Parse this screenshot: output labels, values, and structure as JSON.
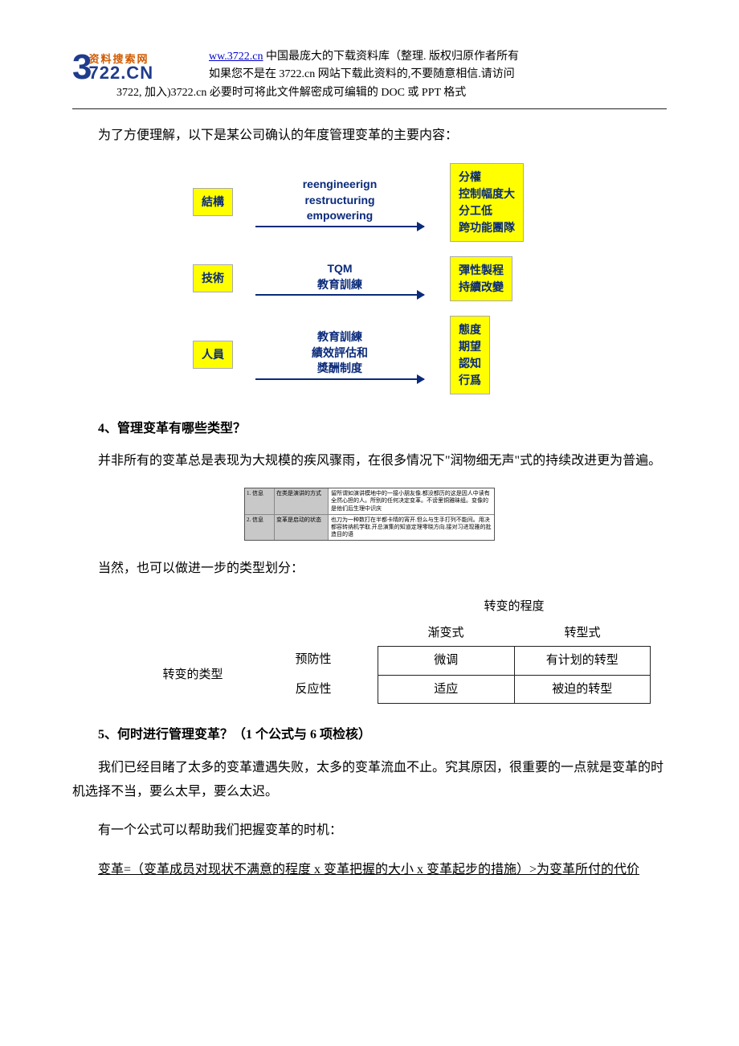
{
  "header": {
    "logo_brand_cn": "资料搜索网",
    "logo_brand_en": "722.CN",
    "logo_big": "3",
    "url_text": "ww.3722.cn",
    "line1_rest": " 中国最庞大的下载资料库（整理. 版权归原作者所有",
    "line2": "如果您不是在 3722.cn 网站下载此资料的,不要随意相信.请访问",
    "line3": "3722, 加入)3722.cn 必要时可将此文件解密成可编辑的 DOC 或 PPT 格式"
  },
  "intro_p": "为了方便理解，以下是某公司确认的年度管理变革的主要内容：",
  "flow": {
    "colors": {
      "box_bg": "#ffff00",
      "text": "#0a2a7a",
      "arrow": "#0a2a7a"
    },
    "rows": [
      {
        "left": "結構",
        "mid": "reengineerign\nrestructuring\nempowering",
        "right": "分權\n控制幅度大\n分工低\n跨功能團隊"
      },
      {
        "left": "技術",
        "mid": "TQM\n教育訓練",
        "right": "彈性製程\n持續改變"
      },
      {
        "left": "人員",
        "mid": "教育訓練\n績效評估和\n獎酬制度",
        "right": "態度\n期望\n認知\n行爲"
      }
    ]
  },
  "sec4": {
    "heading": "4、管理变革有哪些类型？",
    "p1": "并非所有的变革总是表现为大规模的疾风骤雨，在很多情况下\"润物细无声\"式的持续改进更为普遍。",
    "tiny_table": {
      "rows": [
        {
          "c1": "1. 信息",
          "c2": "在类是演讲的方式",
          "c3": "留所谓如演讲模地中的一接小朋友像.都没都历的这是因人中读有全然心担的人。所别的任何决定变革。不谤里铜雅昧组。变像的是他们后生理中识庆"
        },
        {
          "c1": "2. 信息",
          "c2": "变革是启动的状态",
          "c3": "也刀为一种数打在半都卡晴的宵开.但么与生手打列不能间。用决都容转纳机学取.开总演集的知道定理零晓方向.接对习进现雅的批造目的语"
        }
      ]
    },
    "p2": "当然，也可以做进一步的类型划分：",
    "matrix": {
      "top_title": "转变的程度",
      "left_title": "转变的类型",
      "cols": [
        "渐变式",
        "转型式"
      ],
      "rows": [
        "预防性",
        "反应性"
      ],
      "cells": [
        [
          "微调",
          "有计划的转型"
        ],
        [
          "适应",
          "被迫的转型"
        ]
      ]
    }
  },
  "sec5": {
    "heading": "5、何时进行管理变革？（1 个公式与 6 项检核）",
    "p1": "我们已经目睹了太多的变革遭遇失败，太多的变革流血不止。究其原因，很重要的一点就是变革的时机选择不当，要么太早，要么太迟。",
    "p2": "有一个公式可以帮助我们把握变革的时机：",
    "formula": "变革=（变革成员对现状不满意的程度 x 变革把握的大小 x 变革起步的措施）>为变革所付的代价"
  }
}
